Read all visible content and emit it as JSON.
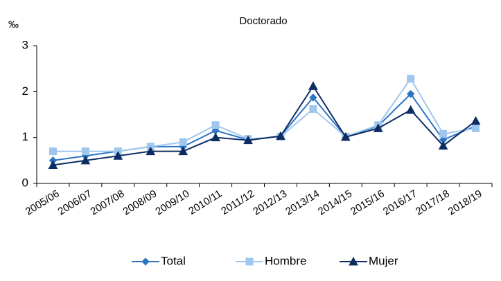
{
  "chart_data": {
    "type": "line",
    "title": "Doctorado",
    "y_label": "‰",
    "categories": [
      "2005/06",
      "2006/07",
      "2007/08",
      "2008/09",
      "2009/10",
      "2010/11",
      "2011/12",
      "2012/13",
      "2013/14",
      "2014/15",
      "2015/16",
      "2016/17",
      "2017/18",
      "2018/19"
    ],
    "series": [
      {
        "name": "Total",
        "color": "#2e75c4",
        "marker": "diamond",
        "values": [
          0.5,
          0.6,
          0.7,
          0.8,
          0.8,
          1.15,
          0.95,
          1.03,
          1.87,
          1.02,
          1.25,
          1.95,
          0.95,
          1.25
        ]
      },
      {
        "name": "Hombre",
        "color": "#9fc7ee",
        "marker": "square",
        "values": [
          0.7,
          0.7,
          0.7,
          0.8,
          0.9,
          1.27,
          0.97,
          1.02,
          1.62,
          1.02,
          1.27,
          2.28,
          1.08,
          1.2
        ]
      },
      {
        "name": "Mujer",
        "color": "#0c2d63",
        "marker": "triangle",
        "values": [
          0.4,
          0.5,
          0.6,
          0.7,
          0.7,
          1.0,
          0.94,
          1.03,
          2.12,
          1.01,
          1.2,
          1.6,
          0.82,
          1.36
        ]
      }
    ],
    "ylim": [
      0,
      3
    ],
    "yticks": [
      0,
      1,
      2,
      3
    ],
    "grid": false,
    "legend": "bottom"
  }
}
